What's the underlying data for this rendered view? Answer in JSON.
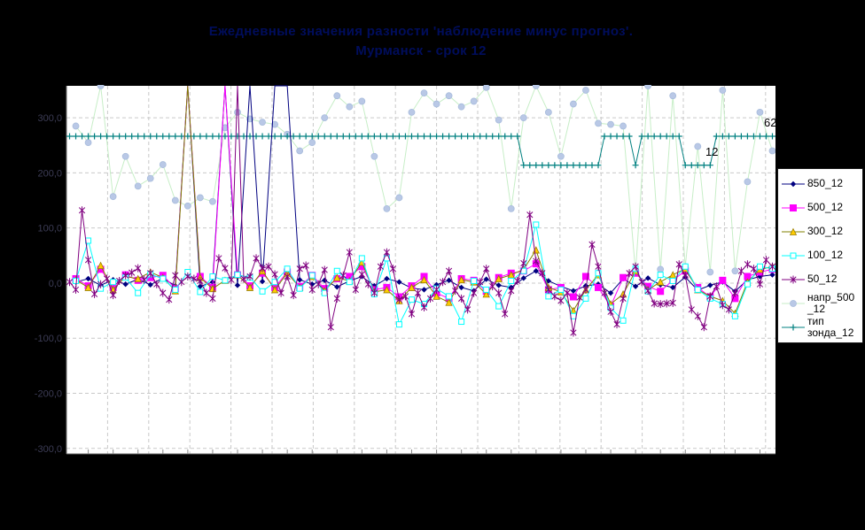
{
  "title": {
    "line1": "Ежедневные значения разности 'наблюдение минус прогноз'.",
    "line2": "Мурманск - срок 12"
  },
  "colors": {
    "background": "#000000",
    "plot_background": "#ffffff",
    "gridline": "#c9c9c9",
    "axis_tick": "#8a8a8a",
    "title_text": "#000d5c",
    "y_tick_label": "#3c3c55",
    "annotation_text": "#000000",
    "legend_background": "#ffffff",
    "legend_border": "#151515"
  },
  "legend": {
    "entries": [
      {
        "series": "850_12",
        "lines": [
          "850_12"
        ]
      },
      {
        "series": "500_12",
        "lines": [
          "500_12"
        ]
      },
      {
        "series": "300_12",
        "lines": [
          "300_12"
        ]
      },
      {
        "series": "100_12",
        "lines": [
          "100_12"
        ]
      },
      {
        "series": "50_12",
        "lines": [
          "50_12"
        ]
      },
      {
        "series": "напр_500_12",
        "lines": [
          "напр_500",
          "_12"
        ]
      },
      {
        "series": "тип зонда_12",
        "lines": [
          "тип",
          "зонда_12"
        ]
      }
    ]
  },
  "chart_data": {
    "type": "line",
    "title": "Ежедневные значения разности 'наблюдение минус прогноз'. Мурманск - срок 12",
    "xlabel": "",
    "ylabel": "",
    "x_unit": "day index",
    "x_days": 114,
    "ylim": [
      -310,
      358
    ],
    "grid": true,
    "legend_position": "right",
    "y_ticks": [
      {
        "value": 300,
        "label": "300,0"
      },
      {
        "value": 200,
        "label": "200,0"
      },
      {
        "value": 100,
        "label": "100,0"
      },
      {
        "value": 0,
        "label": "0,0"
      },
      {
        "value": -100,
        "label": "-100,0"
      },
      {
        "value": -200,
        "label": "-200,0"
      },
      {
        "value": -300,
        "label": "-300,0"
      }
    ],
    "clip_note": "values of 999 are off-scale spikes clipped at the plot top",
    "annotations": [
      {
        "text": "62",
        "x": 862,
        "y": 143
      },
      {
        "text": "12",
        "x": 796,
        "y": 176
      }
    ],
    "series": [
      {
        "name": "напр_500_12",
        "axis": "primary",
        "day_start": 2,
        "day_step": 2,
        "line_color": "#c7eec7",
        "marker": "circle",
        "marker_fill": "#b9c8e6",
        "marker_stroke": "#a8bcdc",
        "marker_size": 7,
        "values": [
          285,
          255,
          358,
          157,
          230,
          176,
          190,
          215,
          150,
          140,
          155,
          148,
          282,
          310,
          298,
          292,
          288,
          270,
          240,
          255,
          300,
          340,
          320,
          330,
          230,
          135,
          155,
          310,
          345,
          325,
          340,
          320,
          330,
          355,
          296,
          135,
          300,
          358,
          310,
          230,
          325,
          350,
          290,
          288,
          285,
          20,
          358,
          25,
          340,
          30,
          248,
          20,
          350,
          22,
          184,
          310,
          240
        ]
      },
      {
        "name": "тип зонда_12",
        "axis": "secondary",
        "day_start": 1,
        "day_step": 1,
        "line_color": "#008080",
        "marker": "plus",
        "marker_fill": "#008080",
        "marker_stroke": "#008080",
        "marker_size": 7,
        "runs": [
          [
            62,
            73
          ],
          [
            12,
            13
          ],
          [
            62,
            5
          ],
          [
            12,
            1
          ],
          [
            62,
            7
          ],
          [
            12,
            5
          ],
          [
            62,
            10
          ]
        ]
      },
      {
        "name": "850_12",
        "axis": "primary",
        "day_start": 2,
        "day_step": 2,
        "line_color": "#000080",
        "marker": "diamond",
        "marker_fill": "#000080",
        "marker_stroke": "#000080",
        "marker_size": 5,
        "values": [
          2,
          8,
          -4,
          6,
          -2,
          7,
          -3,
          9,
          -5,
          999,
          -6,
          2,
          999,
          -4,
          999,
          3,
          999,
          999,
          6,
          -2,
          5,
          -7,
          4,
          12,
          -5,
          8,
          2,
          -9,
          -12,
          -3,
          5,
          -8,
          -14,
          7,
          -4,
          -8,
          9,
          22,
          4,
          -6,
          -14,
          -5,
          -2,
          -18,
          8,
          -6,
          9,
          -3,
          -8,
          11,
          -13,
          -4,
          2,
          -15,
          6,
          12,
          15
        ]
      },
      {
        "name": "500_12",
        "axis": "primary",
        "day_start": 2,
        "day_step": 2,
        "line_color": "#ff00ff",
        "marker": "square",
        "marker_fill": "#ff00ff",
        "marker_stroke": "#ff00ff",
        "marker_size": 7,
        "values": [
          8,
          -5,
          25,
          -8,
          15,
          5,
          10,
          14,
          -10,
          999,
          12,
          -8,
          999,
          15,
          -5,
          18,
          -8,
          20,
          -6,
          14,
          -10,
          8,
          12,
          30,
          -12,
          -8,
          -25,
          -5,
          12,
          -18,
          -28,
          8,
          5,
          -15,
          10,
          18,
          22,
          35,
          -12,
          -8,
          -25,
          12,
          -8,
          -42,
          10,
          18,
          -6,
          -15,
          5,
          22,
          -8,
          -25,
          5,
          -28,
          12,
          20,
          25
        ]
      },
      {
        "name": "300_12",
        "axis": "primary",
        "day_start": 2,
        "day_step": 2,
        "line_color": "#808000",
        "marker": "triangle",
        "marker_fill": "#ffcc00",
        "marker_stroke": "#9a7d00",
        "marker_size": 7,
        "values": [
          6,
          -8,
          32,
          -12,
          12,
          8,
          20,
          10,
          -14,
          999,
          10,
          -10,
          5,
          15,
          -8,
          22,
          -12,
          18,
          -8,
          12,
          -14,
          10,
          4,
          38,
          -16,
          -12,
          -32,
          -8,
          6,
          -24,
          -35,
          6,
          2,
          -20,
          8,
          15,
          25,
          60,
          -8,
          -16,
          -50,
          -12,
          15,
          -38,
          -20,
          22,
          -12,
          2,
          15,
          26,
          -12,
          -24,
          -32,
          -55,
          2,
          25,
          30
        ]
      },
      {
        "name": "100_12",
        "axis": "primary",
        "day_start": 2,
        "day_step": 2,
        "line_color": "#00ffff",
        "marker": "square-open",
        "marker_fill": "#ffffff",
        "marker_stroke": "#00ffff",
        "marker_size": 6,
        "values": [
          4,
          77,
          -10,
          2,
          10,
          -18,
          16,
          8,
          -12,
          20,
          -16,
          12,
          5,
          15,
          10,
          -15,
          2,
          26,
          -10,
          14,
          -18,
          22,
          2,
          45,
          -20,
          45,
          -75,
          -30,
          -38,
          -10,
          -24,
          -70,
          4,
          -12,
          -42,
          4,
          22,
          106,
          -24,
          -12,
          -60,
          -28,
          18,
          -45,
          -68,
          26,
          -15,
          15,
          4,
          30,
          -12,
          -28,
          -38,
          -60,
          -2,
          30,
          26
        ]
      },
      {
        "name": "50_12",
        "axis": "primary",
        "day_start": 1,
        "day_step": 1,
        "line_color": "#800080",
        "marker": "asterisk",
        "marker_fill": "#800080",
        "marker_stroke": "#800080",
        "marker_size": 9,
        "values": [
          2,
          -12,
          132,
          42,
          -20,
          -2,
          8,
          -22,
          4,
          14,
          19,
          27,
          6,
          18,
          -2,
          -18,
          -30,
          14,
          2,
          12,
          8,
          4,
          -18,
          -28,
          45,
          27,
          6,
          999,
          8,
          12,
          45,
          27,
          30,
          16,
          -18,
          12,
          -22,
          26,
          32,
          -12,
          -2,
          24,
          -80,
          -28,
          14,
          56,
          -12,
          16,
          -2,
          -18,
          30,
          56,
          26,
          -30,
          -24,
          -56,
          -18,
          -44,
          -28,
          -12,
          2,
          22,
          -14,
          -28,
          -48,
          -18,
          2,
          26,
          -6,
          -18,
          -56,
          -14,
          4,
          36,
          124,
          40,
          18,
          -12,
          -24,
          -32,
          -18,
          -90,
          -26,
          -12,
          70,
          30,
          -18,
          -52,
          -75,
          -28,
          18,
          30,
          2,
          -14,
          -37,
          -38,
          -37,
          -36,
          34,
          14,
          -48,
          -60,
          -80,
          -24,
          -6,
          -40,
          -48,
          -18,
          22,
          34,
          26,
          -2,
          42,
          30
        ]
      }
    ]
  }
}
